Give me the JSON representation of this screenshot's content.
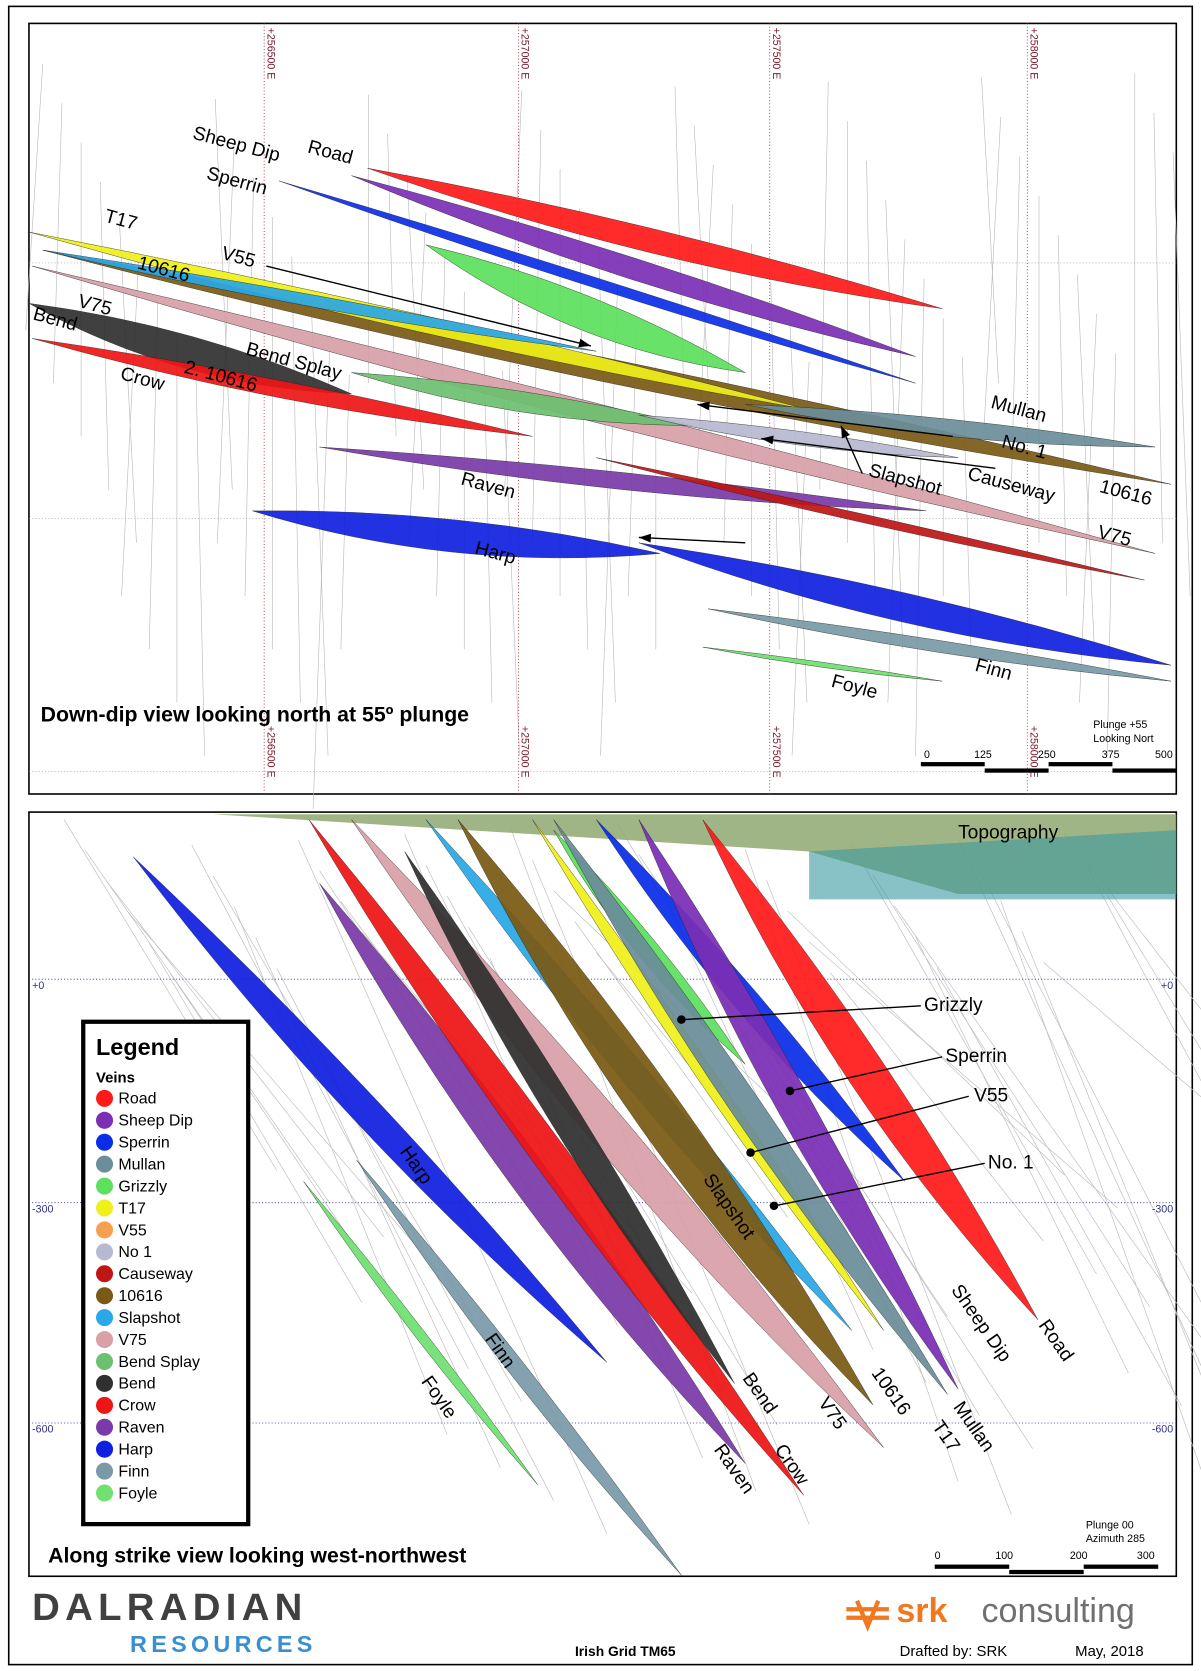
{
  "top_panel": {
    "view_label": "Down-dip view looking north at 55º plunge",
    "grid_labels": [
      "+256500 E",
      "+257000 E",
      "+257500 E",
      "+258000 E"
    ],
    "vein_labels": [
      "Sheep Dip",
      "Road",
      "Sperrin",
      "T17",
      "10616",
      "V55",
      "V75",
      "Bend",
      "Bend Splay",
      "2. 10616",
      "Crow",
      "Mullan",
      "No. 1",
      "Slapshot",
      "Causeway",
      "10616",
      "Raven",
      "V75",
      "Harp",
      "Finn",
      "Foyle"
    ],
    "note": [
      "Plunge +55",
      "Looking Nort"
    ],
    "scale_ticks": [
      "0",
      "125",
      "250",
      "375",
      "500"
    ]
  },
  "bottom_panel": {
    "view_label": "Along strike view looking west-northwest",
    "depth_labels": [
      "+0",
      "-300",
      "-600"
    ],
    "vein_labels": [
      "Topography",
      "Grizzly",
      "Sperrin",
      "V55",
      "No. 1",
      "Harp",
      "Slapshot",
      "Sheep Dip",
      "Road",
      "Finn",
      "Foyle",
      "Bend",
      "V75",
      "10616",
      "Mullan",
      "T17",
      "Raven",
      "Crow"
    ],
    "legend": {
      "title": "Legend",
      "subtitle": "Veins",
      "items": [
        {
          "name": "Road",
          "color": "#ff1a1a"
        },
        {
          "name": "Sheep Dip",
          "color": "#7b2fb5"
        },
        {
          "name": "Sperrin",
          "color": "#0a2ee8"
        },
        {
          "name": "Mullan",
          "color": "#6b8e9a"
        },
        {
          "name": "Grizzly",
          "color": "#5de05d"
        },
        {
          "name": "T17",
          "color": "#f0f01a"
        },
        {
          "name": "V55",
          "color": "#f5a050"
        },
        {
          "name": "No 1",
          "color": "#b8b8d0"
        },
        {
          "name": "Causeway",
          "color": "#c01515"
        },
        {
          "name": "10616",
          "color": "#7a5a14"
        },
        {
          "name": "Slapshot",
          "color": "#2aa8e8"
        },
        {
          "name": "V75",
          "color": "#d9a0a8"
        },
        {
          "name": "Bend Splay",
          "color": "#6cc070"
        },
        {
          "name": "Bend",
          "color": "#303030"
        },
        {
          "name": "Crow",
          "color": "#ee1515"
        },
        {
          "name": "Raven",
          "color": "#7a3aa8"
        },
        {
          "name": "Harp",
          "color": "#1020e0"
        },
        {
          "name": "Finn",
          "color": "#7a9aa8"
        },
        {
          "name": "Foyle",
          "color": "#70e070"
        }
      ]
    },
    "note": [
      "Plunge 00",
      "Azimuth 285"
    ],
    "scale_ticks": [
      "0",
      "100",
      "200",
      "300"
    ]
  },
  "footer": {
    "company": "DALRADIAN",
    "company_sub": "RESOURCES",
    "grid": "Irish Grid TM65",
    "logo_bold": "srk",
    "logo_rest": "consulting",
    "drafted": "Drafted by: SRK",
    "date": "May, 2018"
  }
}
